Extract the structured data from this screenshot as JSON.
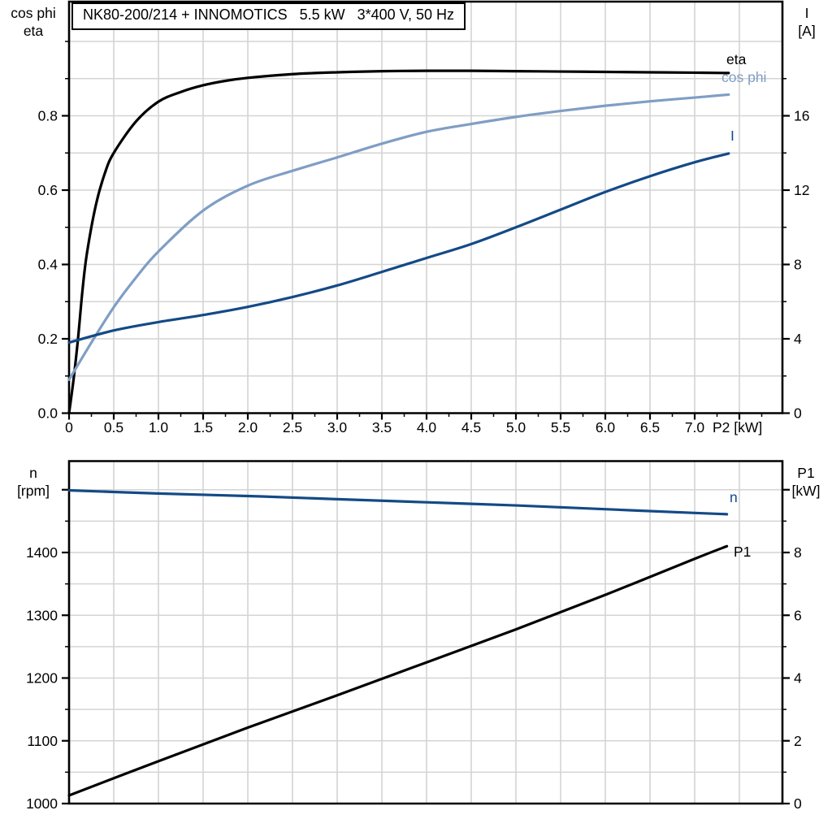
{
  "colors": {
    "background": "#ffffff",
    "axis": "#000000",
    "grid": "#d4d4d4",
    "black_curve": "#000000",
    "light_blue_curve": "#7f9ec4",
    "dark_blue_curve": "#134a86"
  },
  "chart_data": [
    {
      "type": "line",
      "title": "NK80-200/214 + INNOMOTICS   5.5 kW   3*400 V, 50 Hz",
      "xlabel": "P2 [kW]",
      "x_range": [
        0,
        7.98
      ],
      "grid": true,
      "x_ticks": [
        0,
        0.5,
        1,
        1.5,
        2,
        2.5,
        3,
        3.5,
        4,
        4.5,
        5,
        5.5,
        6,
        6.5,
        7,
        7.5
      ],
      "x_tick_labels": [
        "0",
        "0.5",
        "1.0",
        "1.5",
        "2.0",
        "2.5",
        "3.0",
        "3.5",
        "4.0",
        "4.5",
        "5.0",
        "5.5",
        "6.0",
        "6.5",
        "7.0",
        ""
      ],
      "x_minor_step": 0.25,
      "left_axis": {
        "title_lines": [
          "cos phi",
          "eta"
        ],
        "range": [
          0,
          1.0
        ],
        "ticks": [
          0,
          0.2,
          0.4,
          0.6,
          0.8
        ],
        "tick_labels": [
          "0.0",
          "0.2",
          "0.4",
          "0.6",
          "0.8"
        ],
        "minor_step": 0.1,
        "grid_step": 0.1
      },
      "right_axis": {
        "title_lines": [
          "I",
          "[A]"
        ],
        "range": [
          0,
          20
        ],
        "ticks": [
          0,
          4,
          8,
          12,
          16
        ],
        "tick_labels": [
          "0",
          "4",
          "8",
          "12",
          "16"
        ],
        "minor_step": 2
      },
      "series": [
        {
          "name": "eta",
          "label": "eta",
          "axis": "left",
          "color": "#000000",
          "points": [
            [
              0,
              0
            ],
            [
              0.05,
              0.09
            ],
            [
              0.1,
              0.2
            ],
            [
              0.15,
              0.33
            ],
            [
              0.2,
              0.43
            ],
            [
              0.3,
              0.56
            ],
            [
              0.4,
              0.645
            ],
            [
              0.5,
              0.7
            ],
            [
              0.75,
              0.785
            ],
            [
              1,
              0.838
            ],
            [
              1.25,
              0.864
            ],
            [
              1.5,
              0.882
            ],
            [
              1.75,
              0.894
            ],
            [
              2,
              0.902
            ],
            [
              2.5,
              0.912
            ],
            [
              3,
              0.917
            ],
            [
              3.5,
              0.92
            ],
            [
              4,
              0.921
            ],
            [
              4.5,
              0.921
            ],
            [
              5,
              0.92
            ],
            [
              5.5,
              0.919
            ],
            [
              6,
              0.918
            ],
            [
              6.5,
              0.917
            ],
            [
              7,
              0.916
            ],
            [
              7.38,
              0.915
            ]
          ]
        },
        {
          "name": "cos phi",
          "label": "cos phi",
          "axis": "left",
          "color": "#7f9ec4",
          "points": [
            [
              0,
              0.09
            ],
            [
              0.25,
              0.19
            ],
            [
              0.5,
              0.285
            ],
            [
              0.75,
              0.365
            ],
            [
              1,
              0.435
            ],
            [
              1.5,
              0.545
            ],
            [
              2,
              0.612
            ],
            [
              2.5,
              0.652
            ],
            [
              3,
              0.688
            ],
            [
              3.5,
              0.725
            ],
            [
              4,
              0.757
            ],
            [
              4.5,
              0.778
            ],
            [
              5,
              0.797
            ],
            [
              5.5,
              0.813
            ],
            [
              6,
              0.827
            ],
            [
              6.5,
              0.839
            ],
            [
              7,
              0.849
            ],
            [
              7.38,
              0.857
            ]
          ]
        },
        {
          "name": "I",
          "label": "I",
          "axis": "right",
          "color": "#134a86",
          "points": [
            [
              0,
              3.8
            ],
            [
              0.5,
              4.45
            ],
            [
              1,
              4.9
            ],
            [
              1.5,
              5.28
            ],
            [
              2,
              5.72
            ],
            [
              2.5,
              6.25
            ],
            [
              3,
              6.87
            ],
            [
              3.5,
              7.6
            ],
            [
              4,
              8.35
            ],
            [
              4.5,
              9.1
            ],
            [
              5,
              10
            ],
            [
              5.5,
              10.95
            ],
            [
              6,
              11.9
            ],
            [
              6.5,
              12.75
            ],
            [
              7,
              13.5
            ],
            [
              7.38,
              13.97
            ]
          ]
        }
      ]
    },
    {
      "type": "line",
      "title": "",
      "xlabel": "",
      "x_range": [
        0,
        7.98
      ],
      "grid": true,
      "x_ticks": [],
      "x_tick_labels": [],
      "left_axis": {
        "title_lines": [
          "n",
          "[rpm]"
        ],
        "range": [
          1000,
          1545
        ],
        "ticks": [
          1000,
          1100,
          1200,
          1300,
          1400,
          1500
        ],
        "tick_labels": [
          "1000",
          "1100",
          "1200",
          "1300",
          "1400",
          ""
        ],
        "minor_step": 50
      },
      "right_axis": {
        "title_lines": [
          "P1",
          "[kW]"
        ],
        "range": [
          0,
          10.9
        ],
        "ticks": [
          0,
          2,
          4,
          6,
          8,
          10
        ],
        "tick_labels": [
          "0",
          "2",
          "4",
          "6",
          "8",
          ""
        ],
        "minor_step": 1,
        "grid_step": 1
      },
      "series": [
        {
          "name": "n",
          "label": "n",
          "axis": "left",
          "color": "#134a86",
          "points": [
            [
              0,
              1499
            ],
            [
              1,
              1494
            ],
            [
              2,
              1490
            ],
            [
              3,
              1485
            ],
            [
              4,
              1480
            ],
            [
              5,
              1475
            ],
            [
              6,
              1469
            ],
            [
              7,
              1463
            ],
            [
              7.36,
              1461
            ]
          ]
        },
        {
          "name": "P1",
          "label": "P1",
          "axis": "right",
          "color": "#000000",
          "points": [
            [
              0,
              0.26
            ],
            [
              1,
              1.35
            ],
            [
              2,
              2.42
            ],
            [
              3,
              3.45
            ],
            [
              4,
              4.5
            ],
            [
              5,
              5.55
            ],
            [
              6,
              6.65
            ],
            [
              7,
              7.8
            ],
            [
              7.36,
              8.2
            ]
          ]
        }
      ]
    }
  ]
}
